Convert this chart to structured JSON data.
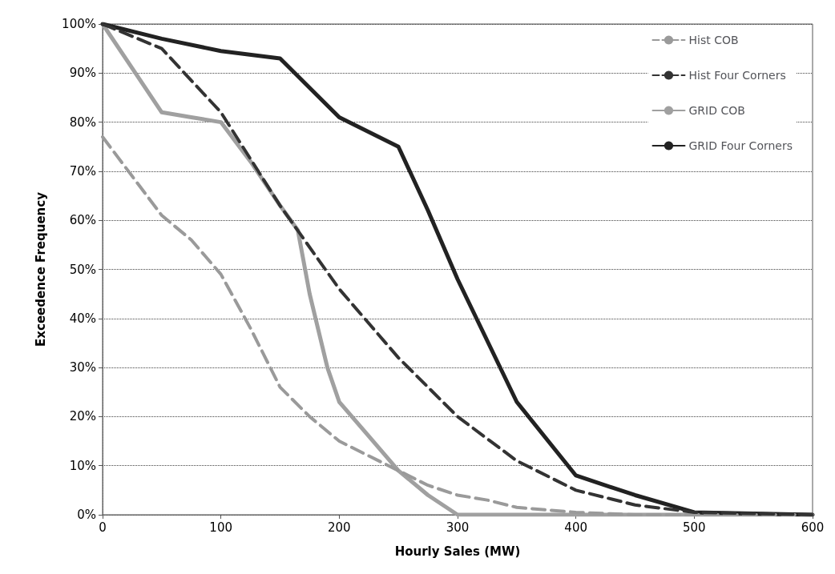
{
  "chart_data": {
    "type": "line",
    "xlabel": "Hourly Sales (MW)",
    "ylabel": "Exceedence Frequency",
    "xlim": [
      0,
      600
    ],
    "xticks": [
      0,
      100,
      200,
      300,
      400,
      500,
      600
    ],
    "ylim": [
      0,
      100
    ],
    "yticks": [
      {
        "value": 0,
        "label": "0%"
      },
      {
        "value": 10,
        "label": "10%"
      },
      {
        "value": 20,
        "label": "20%"
      },
      {
        "value": 30,
        "label": "30%"
      },
      {
        "value": 40,
        "label": "40%"
      },
      {
        "value": 50,
        "label": "50%"
      },
      {
        "value": 60,
        "label": "60%"
      },
      {
        "value": 70,
        "label": "70%"
      },
      {
        "value": 80,
        "label": "80%"
      },
      {
        "value": 90,
        "label": "90%"
      },
      {
        "value": 100,
        "label": "100%"
      }
    ],
    "grid": "y",
    "legend": "top right",
    "marker": "none",
    "series": [
      {
        "name": "Hist COB",
        "color": "#9a9a9a",
        "line_style": "dashed",
        "x": [
          0,
          25,
          50,
          75,
          100,
          125,
          150,
          175,
          200,
          225,
          250,
          275,
          300,
          325,
          350,
          400,
          450,
          600
        ],
        "values": [
          77,
          69,
          61,
          56,
          49,
          38,
          26,
          20,
          15,
          12,
          9,
          6,
          4,
          3,
          1.5,
          0.5,
          0,
          0
        ]
      },
      {
        "name": "Hist Four Corners",
        "color": "#333333",
        "line_style": "dashed",
        "x": [
          0,
          50,
          100,
          150,
          200,
          250,
          300,
          350,
          400,
          450,
          500,
          600
        ],
        "values": [
          100,
          95,
          82,
          63,
          46,
          32,
          20,
          11,
          5,
          2,
          0.5,
          0
        ]
      },
      {
        "name": "GRID COB",
        "color": "#a0a0a0",
        "line_style": "solid",
        "x": [
          0,
          25,
          50,
          75,
          100,
          125,
          150,
          165,
          175,
          190,
          200,
          225,
          250,
          275,
          300,
          600
        ],
        "values": [
          100,
          91,
          82,
          81,
          80,
          72,
          63,
          58,
          45,
          30,
          23,
          16,
          9,
          4,
          0,
          0
        ]
      },
      {
        "name": "GRID Four Corners",
        "color": "#222222",
        "line_style": "solid",
        "x": [
          0,
          50,
          100,
          150,
          200,
          250,
          275,
          300,
          350,
          400,
          450,
          500,
          600
        ],
        "values": [
          100,
          97,
          94.5,
          93,
          81,
          75,
          62,
          48,
          23,
          8,
          4,
          0.5,
          0
        ]
      }
    ]
  }
}
